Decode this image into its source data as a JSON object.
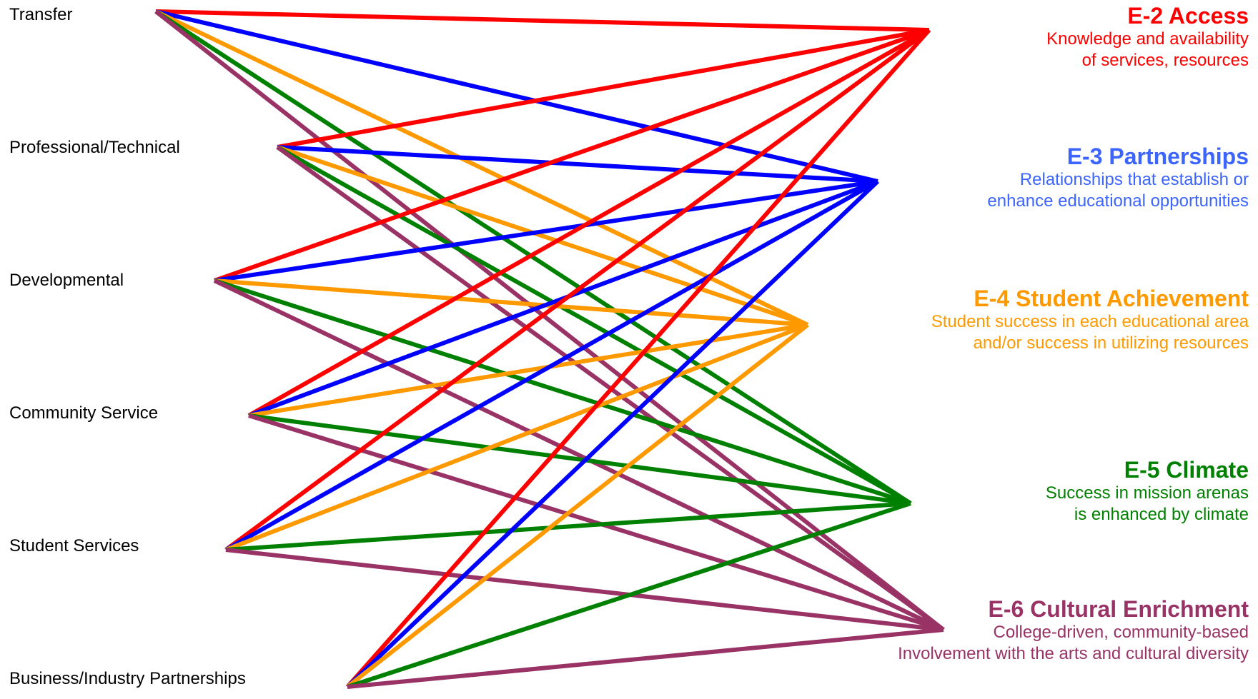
{
  "sources": [
    {
      "id": "transfer",
      "label": "Transfer"
    },
    {
      "id": "professional",
      "label": "Professional/Technical"
    },
    {
      "id": "developmental",
      "label": "Developmental"
    },
    {
      "id": "community",
      "label": "Community Service"
    },
    {
      "id": "student",
      "label": "Student Services"
    },
    {
      "id": "business",
      "label": "Business/Industry Partnerships"
    }
  ],
  "outcomes": [
    {
      "id": "e2",
      "title": "E-2 Access",
      "desc1": "Knowledge and availability",
      "desc2": "of services, resources",
      "color": "#ff0000"
    },
    {
      "id": "e3",
      "title": "E-3 Partnerships",
      "desc1": "Relationships that establish or",
      "desc2": "enhance educational opportunities",
      "color": "#3c64ff"
    },
    {
      "id": "e4",
      "title": "E-4 Student Achievement",
      "desc1": "Student success in each educational area",
      "desc2": "and/or success in utilizing resources",
      "color": "#ff9900"
    },
    {
      "id": "e5",
      "title": "E-5 Climate",
      "desc1": "Success in mission arenas",
      "desc2": "is enhanced by climate",
      "color": "#008000"
    },
    {
      "id": "e6",
      "title": "E-6 Cultural Enrichment",
      "desc1": "College-driven, community-based",
      "desc2": "Involvement with the arts and cultural diversity",
      "color": "#993366"
    }
  ],
  "line_colors": {
    "e2": "#ff0000",
    "e3": "#0000ff",
    "e4": "#ff9900",
    "e5": "#008000",
    "e6": "#993366"
  },
  "connections": [
    {
      "from": "transfer",
      "to": "e2"
    },
    {
      "from": "transfer",
      "to": "e3"
    },
    {
      "from": "transfer",
      "to": "e4"
    },
    {
      "from": "transfer",
      "to": "e5"
    },
    {
      "from": "transfer",
      "to": "e6"
    },
    {
      "from": "professional",
      "to": "e2"
    },
    {
      "from": "professional",
      "to": "e3"
    },
    {
      "from": "professional",
      "to": "e4"
    },
    {
      "from": "professional",
      "to": "e5"
    },
    {
      "from": "professional",
      "to": "e6"
    },
    {
      "from": "developmental",
      "to": "e2"
    },
    {
      "from": "developmental",
      "to": "e3"
    },
    {
      "from": "developmental",
      "to": "e4"
    },
    {
      "from": "developmental",
      "to": "e5"
    },
    {
      "from": "developmental",
      "to": "e6"
    },
    {
      "from": "community",
      "to": "e2"
    },
    {
      "from": "community",
      "to": "e3"
    },
    {
      "from": "community",
      "to": "e4"
    },
    {
      "from": "community",
      "to": "e5"
    },
    {
      "from": "community",
      "to": "e6"
    },
    {
      "from": "student",
      "to": "e2"
    },
    {
      "from": "student",
      "to": "e3"
    },
    {
      "from": "student",
      "to": "e4"
    },
    {
      "from": "student",
      "to": "e5"
    },
    {
      "from": "student",
      "to": "e6"
    },
    {
      "from": "business",
      "to": "e2"
    },
    {
      "from": "business",
      "to": "e3"
    },
    {
      "from": "business",
      "to": "e4"
    },
    {
      "from": "business",
      "to": "e5"
    },
    {
      "from": "business",
      "to": "e6"
    }
  ]
}
